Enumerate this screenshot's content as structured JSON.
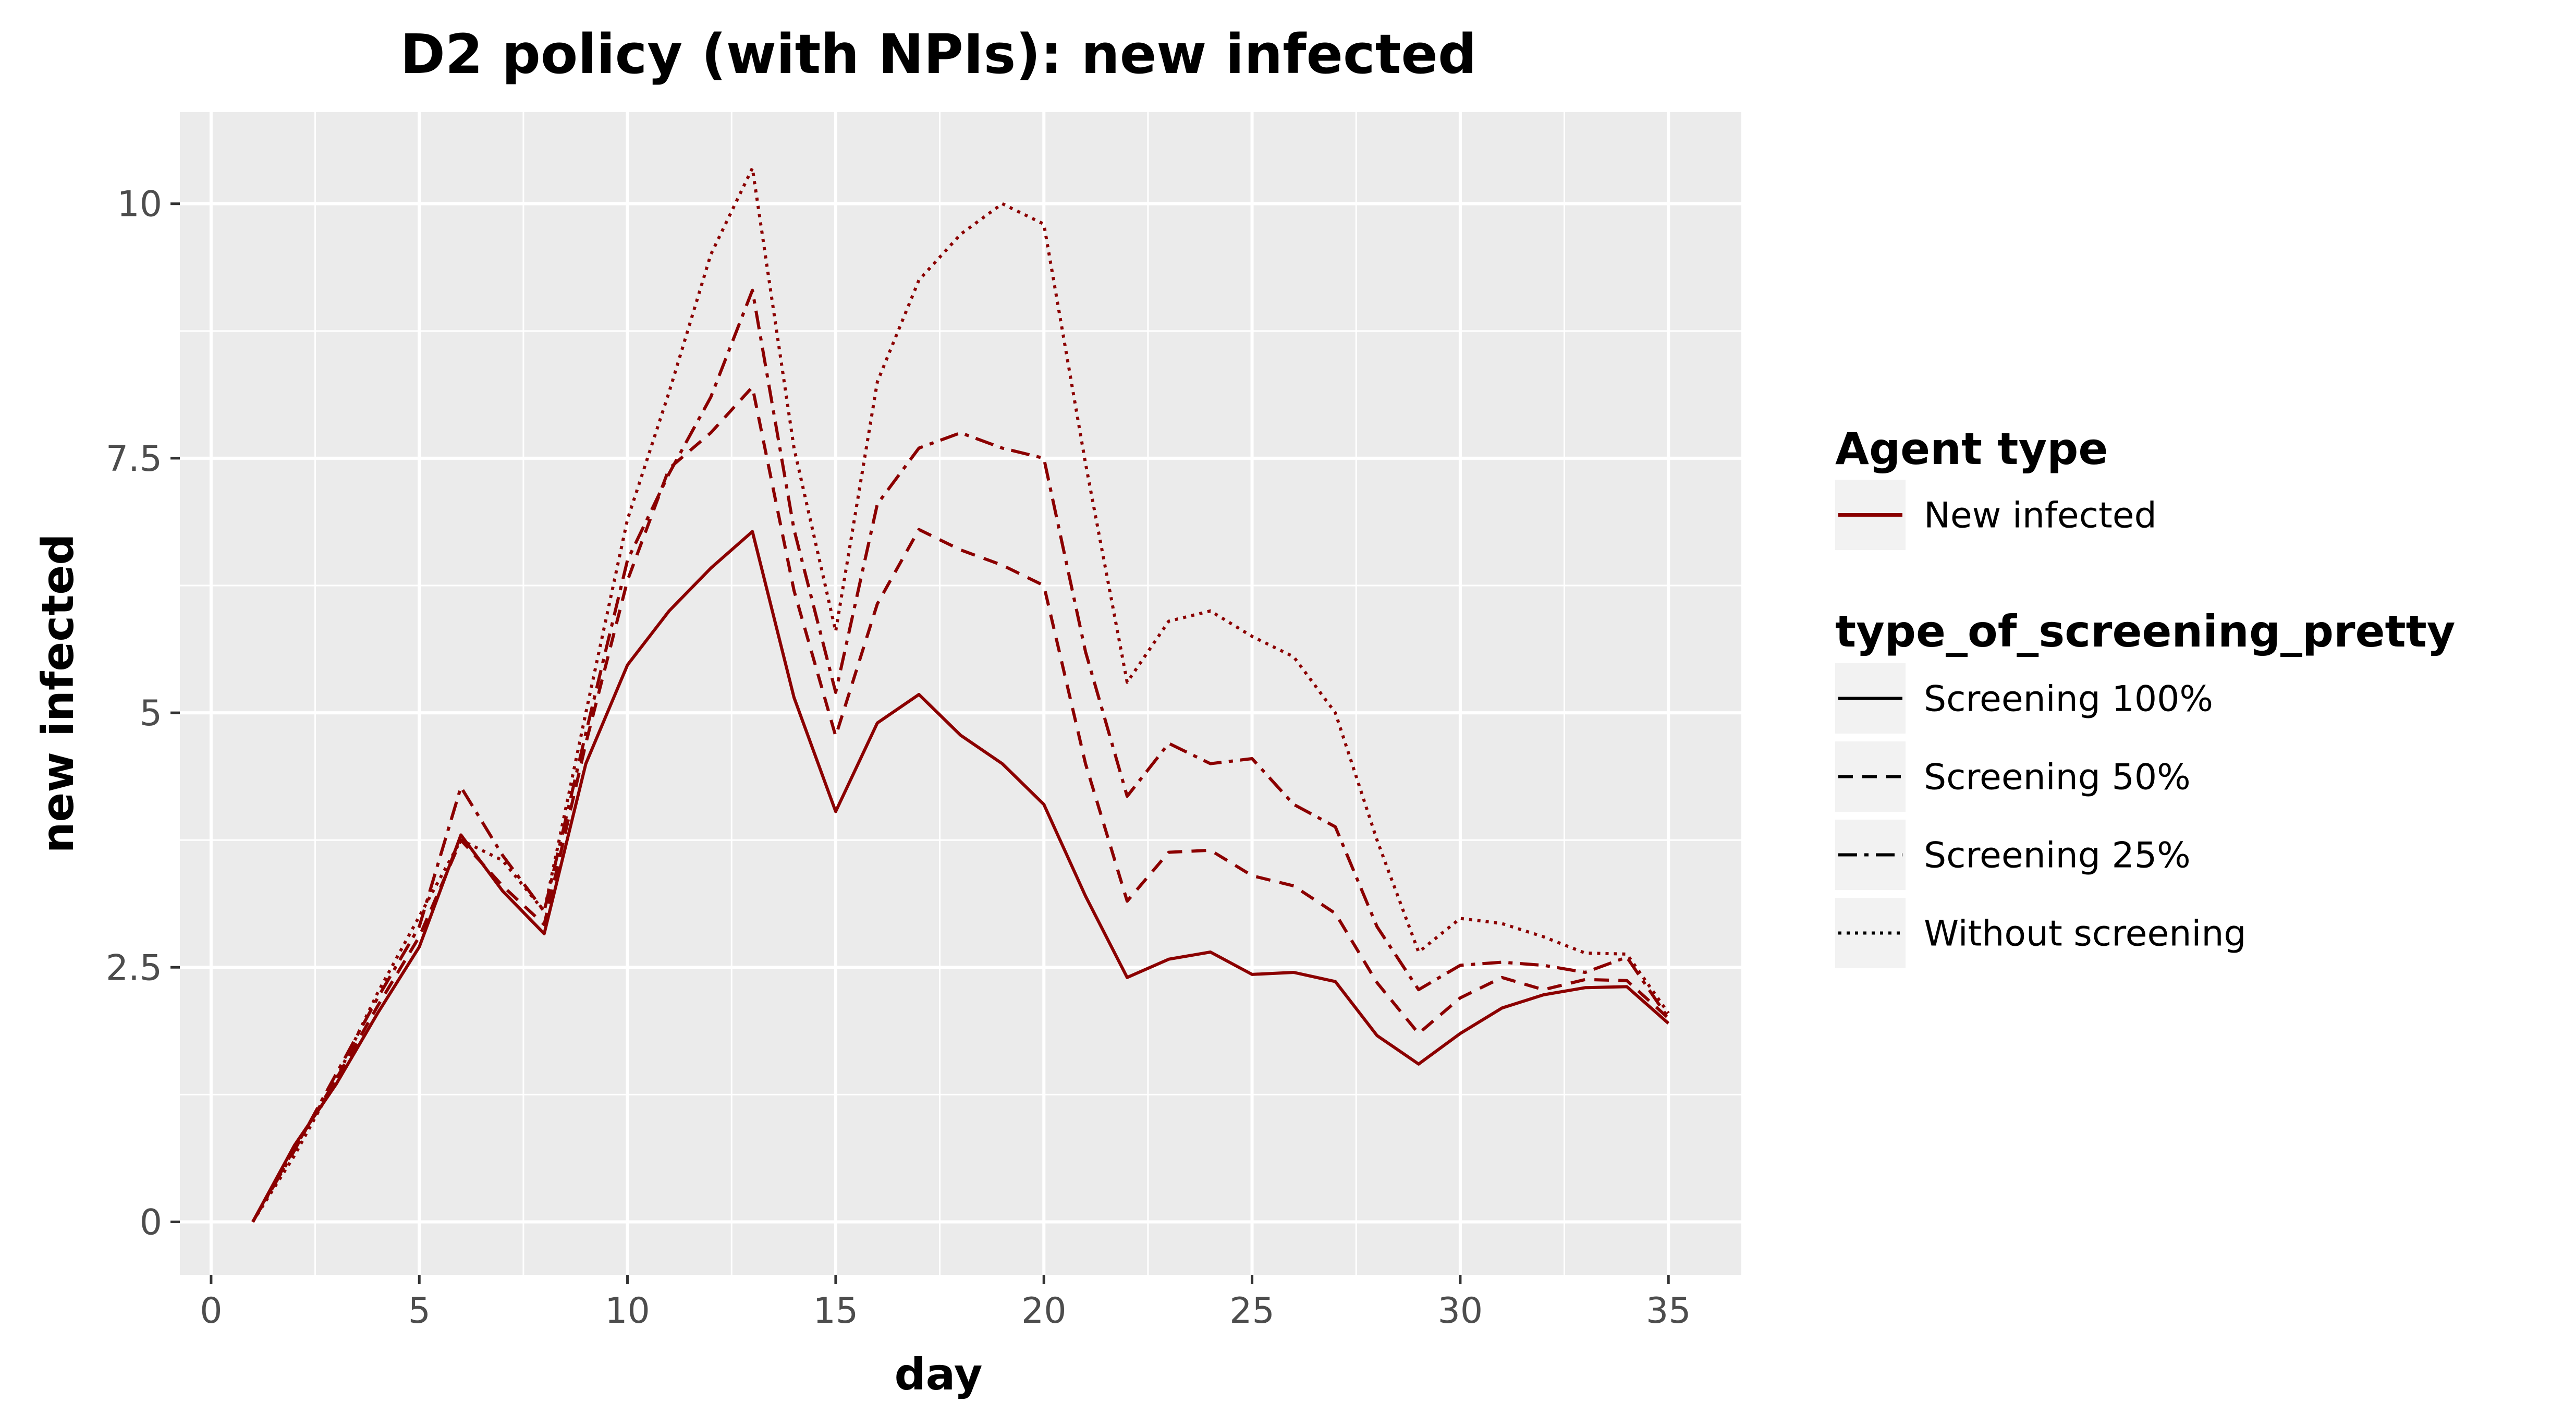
{
  "chart_data": {
    "type": "line",
    "title": "D2 policy (with NPIs): new infected",
    "xlabel": "day",
    "ylabel": "new infected",
    "xlim": [
      -0.75,
      36.75
    ],
    "ylim": [
      -0.52,
      10.9
    ],
    "x_ticks": [
      0,
      5,
      10,
      15,
      20,
      25,
      30,
      35
    ],
    "x_tick_labels": [
      "0",
      "5",
      "10",
      "15",
      "20",
      "25",
      "30",
      "35"
    ],
    "y_ticks": [
      0,
      2.5,
      5,
      7.5,
      10
    ],
    "y_tick_labels": [
      "0",
      "2.5",
      "5",
      "7.5",
      "10"
    ],
    "grid": true,
    "panel_background": "#ebebeb",
    "line_color": "#8b0000",
    "legend_position": "right",
    "legend": {
      "color_title": "Agent type",
      "color_entries": [
        {
          "label": "New infected",
          "color": "#8b0000"
        }
      ],
      "linetype_title": "type_of_screening_pretty",
      "linetype_entries": [
        {
          "label": "Screening 100%",
          "linetype": "solid"
        },
        {
          "label": "Screening 50%",
          "linetype": "dashed"
        },
        {
          "label": "Screening 25%",
          "linetype": "dashdot"
        },
        {
          "label": "Without screening",
          "linetype": "dotted"
        }
      ]
    },
    "x": [
      1,
      2,
      3,
      4,
      5,
      6,
      7,
      8,
      9,
      10,
      11,
      12,
      13,
      14,
      15,
      16,
      17,
      18,
      19,
      20,
      21,
      22,
      23,
      24,
      25,
      26,
      27,
      28,
      29,
      30,
      31,
      32,
      33,
      34,
      35
    ],
    "series": [
      {
        "name": "Screening 100%",
        "linetype": "solid",
        "values": [
          0,
          0.75,
          1.35,
          2.05,
          2.7,
          3.8,
          3.25,
          2.83,
          4.5,
          5.47,
          6.0,
          6.42,
          6.78,
          5.15,
          4.03,
          4.9,
          5.18,
          4.78,
          4.5,
          4.1,
          3.2,
          2.4,
          2.58,
          2.65,
          2.43,
          2.45,
          2.36,
          1.83,
          1.55,
          1.85,
          2.1,
          2.23,
          2.3,
          2.31,
          1.95
        ]
      },
      {
        "name": "Screening 50%",
        "linetype": "dashed",
        "values": [
          0,
          0.72,
          1.4,
          2.12,
          2.8,
          3.75,
          3.3,
          2.92,
          4.7,
          6.3,
          7.4,
          7.75,
          8.2,
          6.2,
          4.77,
          6.07,
          6.8,
          6.6,
          6.45,
          6.25,
          4.5,
          3.15,
          3.63,
          3.65,
          3.4,
          3.3,
          3.03,
          2.35,
          1.85,
          2.2,
          2.4,
          2.28,
          2.38,
          2.37,
          2.0
        ]
      },
      {
        "name": "Screening 25%",
        "linetype": "dashdot",
        "values": [
          0,
          0.7,
          1.45,
          2.2,
          2.9,
          4.27,
          3.6,
          3.05,
          4.8,
          6.5,
          7.35,
          8.1,
          9.15,
          6.8,
          5.2,
          7.05,
          7.6,
          7.75,
          7.6,
          7.5,
          5.6,
          4.18,
          4.7,
          4.5,
          4.55,
          4.1,
          3.88,
          2.9,
          2.28,
          2.52,
          2.55,
          2.52,
          2.45,
          2.6,
          2.0
        ]
      },
      {
        "name": "Without screening",
        "linetype": "dotted",
        "values": [
          0,
          0.65,
          1.4,
          2.25,
          3.0,
          3.75,
          3.55,
          3.05,
          5.0,
          6.9,
          8.15,
          9.5,
          10.35,
          7.6,
          5.8,
          8.25,
          9.25,
          9.7,
          10.0,
          9.8,
          7.45,
          5.3,
          5.9,
          6.0,
          5.75,
          5.55,
          5.0,
          3.75,
          2.65,
          2.98,
          2.93,
          2.8,
          2.64,
          2.63,
          2.05
        ]
      }
    ]
  }
}
